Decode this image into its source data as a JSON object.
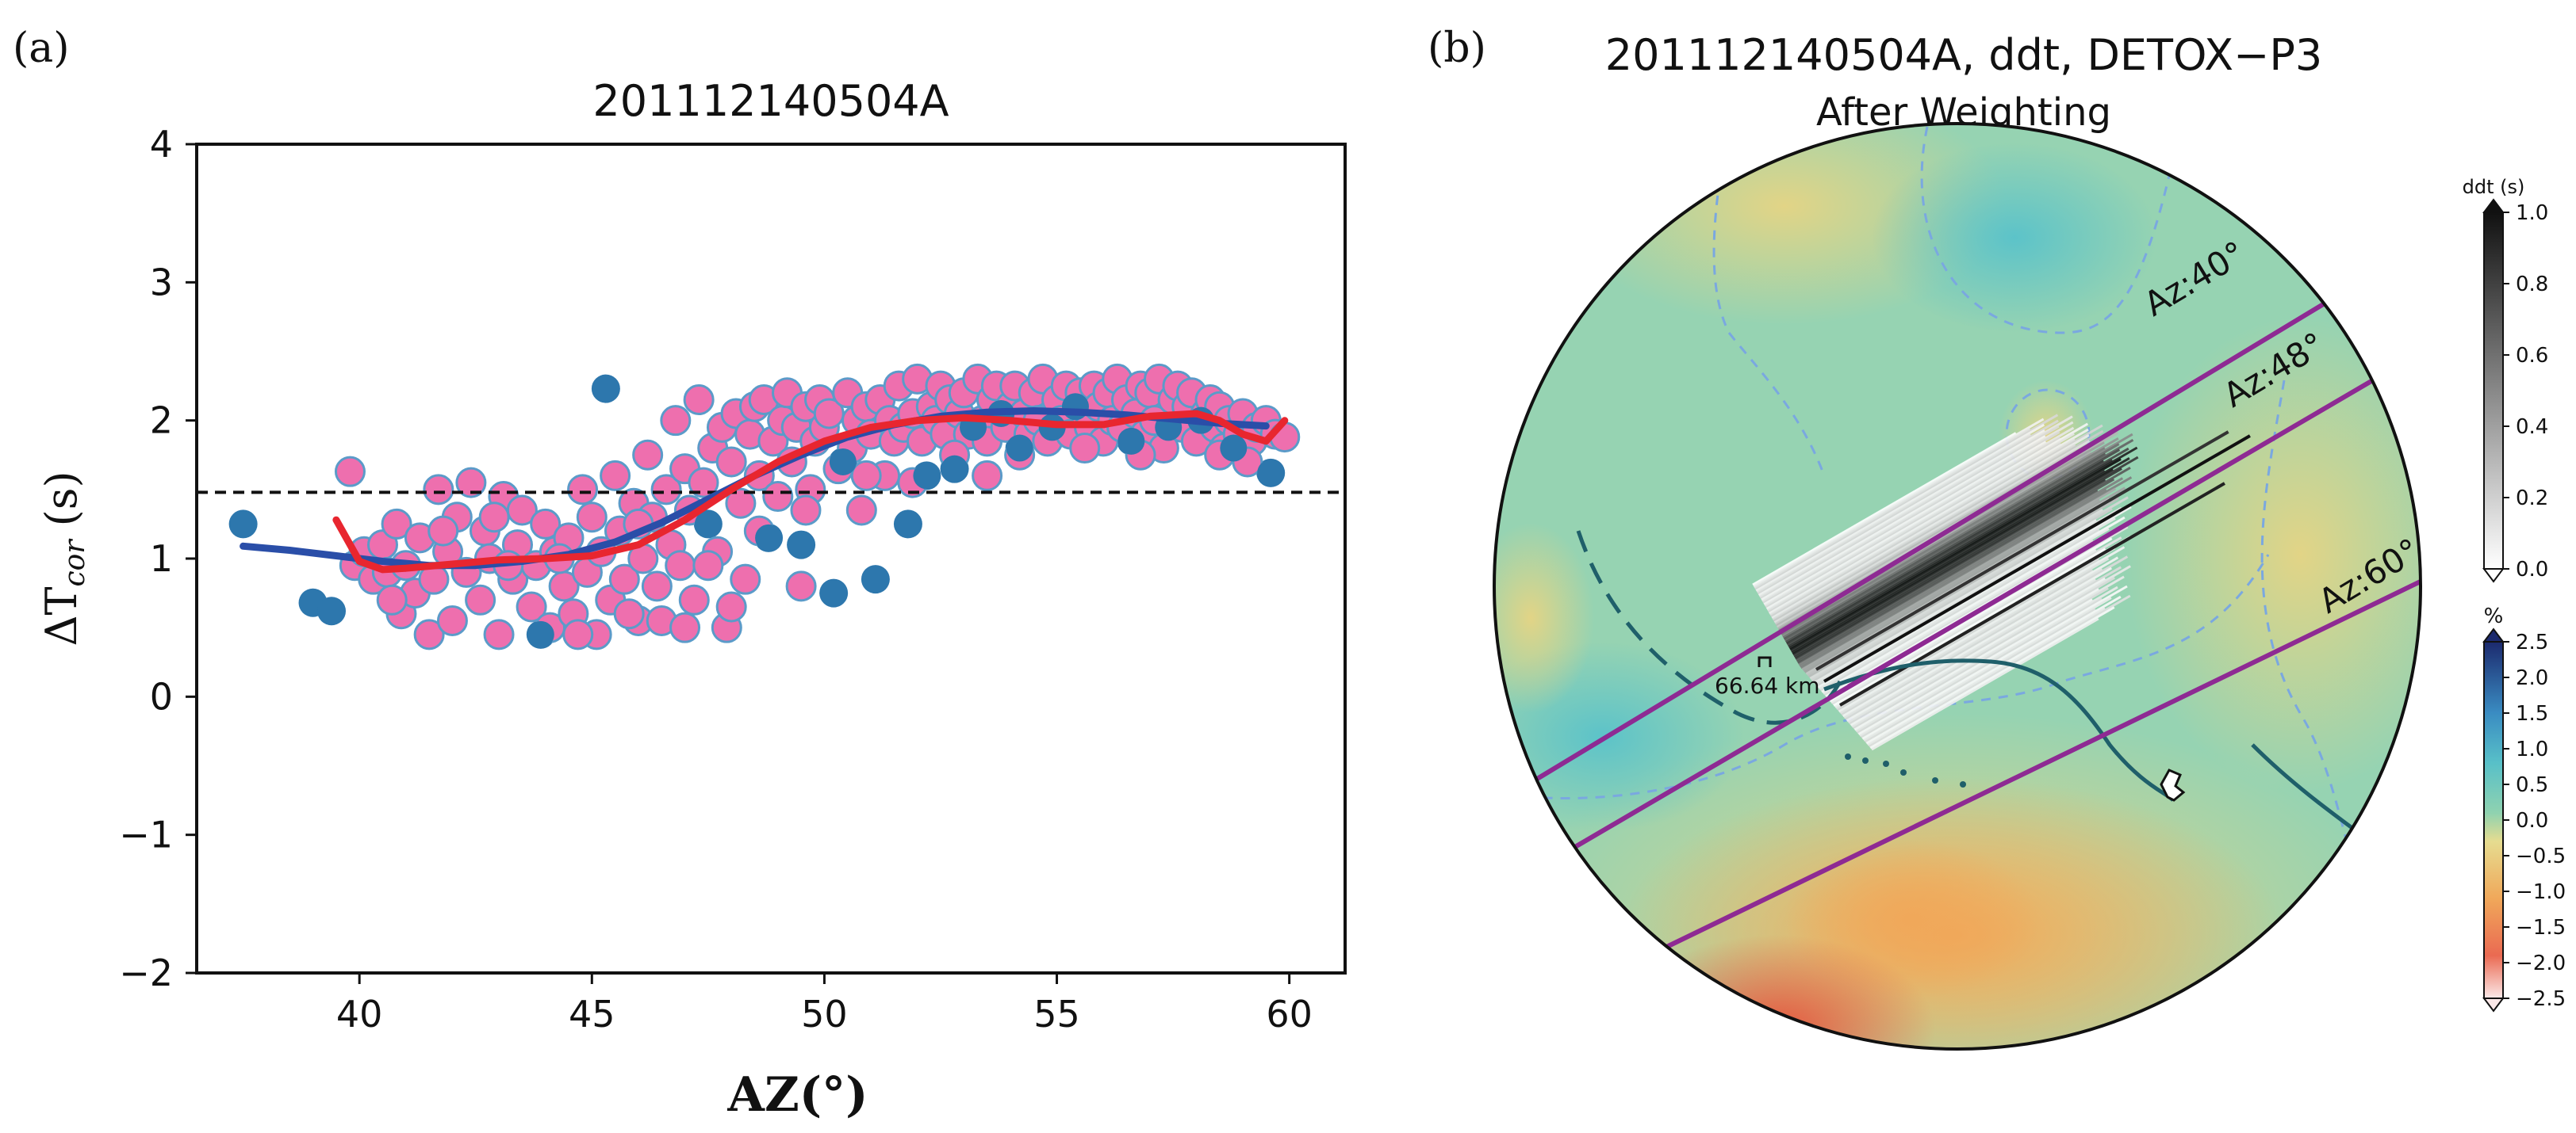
{
  "panel_a": {
    "label": "(a)",
    "title": "201112140504A",
    "ylabel_main": "ΔT",
    "ylabel_sub": "cor",
    "ylabel_unit": " (s)",
    "xlabel": "AZ(°)"
  },
  "panel_b": {
    "label": "(b)",
    "title": "201112140504A, ddt, DETOX−P3",
    "subtitle": "After Weighting",
    "azimuth_labels": [
      "Az:40°",
      "Az:48°",
      "Az:60°"
    ],
    "scale_label": "66.64 km",
    "colorbar_ddt": {
      "title": "ddt (s)",
      "ticks": [
        "1.0",
        "0.8",
        "0.6",
        "0.4",
        "0.2",
        "0.0"
      ]
    },
    "colorbar_pct": {
      "title": "%",
      "ticks": [
        "2.5",
        "2.0",
        "1.5",
        "1.0",
        "0.5",
        "0.0",
        "−0.5",
        "−1.0",
        "−1.5",
        "−2.0",
        "−2.5"
      ]
    },
    "colors": {
      "azimuth_line": "#8e2a93",
      "ray_dark": "#111111",
      "track": "#1f5f6a"
    }
  },
  "chart_data": [
    {
      "type": "scatter",
      "title": "201112140504A",
      "xlabel": "AZ(°)",
      "ylabel": "ΔTcor (s)",
      "xlim": [
        36.5,
        61.2
      ],
      "ylim": [
        -2,
        4
      ],
      "xticks": [
        40,
        45,
        50,
        55,
        60
      ],
      "yticks": [
        -2,
        -1,
        0,
        1,
        2,
        3,
        4
      ],
      "xtick_labels": [
        "40",
        "45",
        "50",
        "55",
        "60"
      ],
      "ytick_labels": [
        "−2",
        "−1",
        "0",
        "1",
        "2",
        "3",
        "4"
      ],
      "reference_line": 1.48,
      "colors": {
        "pink": "#ee6fae",
        "pink_edge": "#5b9bc9",
        "blue": "#2d77ad",
        "red": "#e8262f",
        "navy": "#2a4ea8"
      },
      "series": [
        {
          "name": "blue_points",
          "points": [
            [
              37.5,
              1.25
            ],
            [
              39.0,
              0.68
            ],
            [
              39.4,
              0.62
            ],
            [
              45.3,
              2.23
            ],
            [
              43.9,
              0.45
            ],
            [
              47.5,
              1.25
            ],
            [
              48.8,
              1.15
            ],
            [
              49.5,
              1.1
            ],
            [
              50.2,
              0.75
            ],
            [
              51.1,
              0.85
            ],
            [
              51.8,
              1.25
            ],
            [
              52.2,
              1.6
            ],
            [
              52.8,
              1.65
            ],
            [
              53.2,
              1.95
            ],
            [
              53.8,
              2.05
            ],
            [
              54.2,
              1.8
            ],
            [
              54.9,
              1.95
            ],
            [
              56.6,
              1.85
            ],
            [
              57.4,
              1.95
            ],
            [
              58.1,
              2.0
            ],
            [
              58.8,
              1.8
            ],
            [
              59.6,
              1.62
            ],
            [
              55.4,
              2.1
            ],
            [
              50.4,
              1.7
            ]
          ]
        },
        {
          "name": "pink_points",
          "points": [
            [
              39.8,
              1.63
            ],
            [
              39.9,
              0.95
            ],
            [
              40.1,
              1.05
            ],
            [
              40.3,
              0.85
            ],
            [
              40.5,
              1.1
            ],
            [
              40.6,
              0.9
            ],
            [
              40.8,
              1.25
            ],
            [
              40.9,
              0.6
            ],
            [
              41.0,
              0.95
            ],
            [
              41.2,
              0.75
            ],
            [
              41.3,
              1.15
            ],
            [
              41.5,
              0.45
            ],
            [
              41.6,
              0.85
            ],
            [
              41.7,
              1.5
            ],
            [
              41.9,
              1.05
            ],
            [
              42.0,
              0.55
            ],
            [
              42.1,
              1.3
            ],
            [
              42.3,
              0.9
            ],
            [
              42.4,
              1.55
            ],
            [
              42.6,
              0.7
            ],
            [
              42.7,
              1.2
            ],
            [
              42.8,
              1.0
            ],
            [
              43.0,
              0.45
            ],
            [
              43.1,
              1.45
            ],
            [
              43.3,
              0.85
            ],
            [
              43.4,
              1.1
            ],
            [
              43.5,
              1.35
            ],
            [
              43.7,
              0.65
            ],
            [
              43.8,
              0.95
            ],
            [
              44.0,
              1.25
            ],
            [
              44.1,
              0.5
            ],
            [
              44.2,
              1.05
            ],
            [
              44.4,
              0.8
            ],
            [
              44.5,
              1.15
            ],
            [
              44.6,
              0.6
            ],
            [
              44.8,
              1.5
            ],
            [
              44.9,
              0.9
            ],
            [
              45.0,
              1.3
            ],
            [
              45.1,
              0.45
            ],
            [
              45.2,
              1.05
            ],
            [
              45.4,
              0.7
            ],
            [
              45.5,
              1.6
            ],
            [
              45.6,
              1.2
            ],
            [
              45.7,
              0.85
            ],
            [
              45.9,
              1.4
            ],
            [
              46.0,
              0.55
            ],
            [
              46.1,
              1.0
            ],
            [
              46.2,
              1.75
            ],
            [
              46.3,
              1.3
            ],
            [
              46.4,
              0.8
            ],
            [
              46.6,
              1.5
            ],
            [
              46.7,
              1.1
            ],
            [
              46.8,
              2.0
            ],
            [
              46.9,
              0.95
            ],
            [
              47.0,
              1.65
            ],
            [
              47.1,
              1.35
            ],
            [
              47.2,
              0.7
            ],
            [
              47.3,
              2.15
            ],
            [
              47.4,
              1.55
            ],
            [
              47.6,
              1.8
            ],
            [
              47.7,
              1.05
            ],
            [
              47.8,
              1.95
            ],
            [
              47.9,
              0.5
            ],
            [
              48.0,
              1.7
            ],
            [
              48.1,
              2.05
            ],
            [
              48.2,
              1.4
            ],
            [
              48.3,
              0.85
            ],
            [
              48.4,
              1.9
            ],
            [
              48.5,
              2.1
            ],
            [
              48.6,
              1.6
            ],
            [
              48.7,
              2.15
            ],
            [
              48.9,
              1.85
            ],
            [
              49.0,
              1.45
            ],
            [
              49.1,
              2.0
            ],
            [
              49.2,
              2.2
            ],
            [
              49.3,
              1.7
            ],
            [
              49.4,
              1.95
            ],
            [
              49.6,
              2.1
            ],
            [
              49.7,
              1.5
            ],
            [
              49.8,
              1.85
            ],
            [
              49.9,
              2.15
            ],
            [
              50.0,
              1.95
            ],
            [
              50.1,
              2.05
            ],
            [
              50.3,
              1.65
            ],
            [
              50.5,
              2.2
            ],
            [
              50.6,
              1.8
            ],
            [
              50.7,
              2.0
            ],
            [
              50.8,
              1.35
            ],
            [
              50.9,
              2.1
            ],
            [
              51.0,
              1.9
            ],
            [
              51.2,
              2.15
            ],
            [
              51.3,
              1.6
            ],
            [
              51.4,
              2.0
            ],
            [
              51.5,
              1.85
            ],
            [
              51.6,
              2.25
            ],
            [
              51.7,
              1.95
            ],
            [
              51.9,
              2.05
            ],
            [
              52.0,
              2.3
            ],
            [
              52.1,
              1.85
            ],
            [
              52.3,
              2.1
            ],
            [
              52.4,
              2.0
            ],
            [
              52.5,
              2.25
            ],
            [
              52.6,
              1.9
            ],
            [
              52.7,
              2.15
            ],
            [
              52.9,
              2.05
            ],
            [
              53.0,
              2.2
            ],
            [
              53.1,
              1.9
            ],
            [
              53.3,
              2.3
            ],
            [
              53.4,
              2.0
            ],
            [
              53.5,
              1.85
            ],
            [
              53.6,
              2.15
            ],
            [
              53.7,
              2.25
            ],
            [
              53.9,
              1.95
            ],
            [
              54.0,
              2.1
            ],
            [
              54.1,
              2.25
            ],
            [
              54.3,
              2.05
            ],
            [
              54.4,
              1.9
            ],
            [
              54.5,
              2.2
            ],
            [
              54.6,
              2.0
            ],
            [
              54.7,
              2.3
            ],
            [
              54.8,
              1.85
            ],
            [
              55.0,
              2.15
            ],
            [
              55.1,
              2.0
            ],
            [
              55.2,
              2.25
            ],
            [
              55.3,
              1.9
            ],
            [
              55.5,
              2.2
            ],
            [
              55.6,
              2.05
            ],
            [
              55.7,
              1.95
            ],
            [
              55.8,
              2.25
            ],
            [
              55.9,
              2.1
            ],
            [
              56.0,
              1.85
            ],
            [
              56.1,
              2.2
            ],
            [
              56.2,
              2.0
            ],
            [
              56.3,
              2.3
            ],
            [
              56.4,
              1.95
            ],
            [
              56.5,
              2.15
            ],
            [
              56.7,
              2.05
            ],
            [
              56.8,
              2.25
            ],
            [
              56.9,
              1.9
            ],
            [
              57.0,
              2.2
            ],
            [
              57.1,
              2.0
            ],
            [
              57.2,
              2.3
            ],
            [
              57.3,
              1.8
            ],
            [
              57.5,
              2.15
            ],
            [
              57.6,
              2.25
            ],
            [
              57.7,
              1.95
            ],
            [
              57.8,
              2.1
            ],
            [
              57.9,
              2.2
            ],
            [
              58.0,
              1.85
            ],
            [
              58.2,
              2.05
            ],
            [
              58.3,
              2.15
            ],
            [
              58.4,
              1.95
            ],
            [
              58.5,
              2.1
            ],
            [
              58.6,
              1.8
            ],
            [
              58.7,
              2.0
            ],
            [
              58.9,
              1.9
            ],
            [
              59.0,
              2.05
            ],
            [
              59.2,
              1.85
            ],
            [
              59.3,
              1.95
            ],
            [
              59.5,
              2.0
            ],
            [
              59.7,
              1.9
            ],
            [
              59.9,
              1.88
            ],
            [
              49.5,
              0.8
            ],
            [
              48.0,
              0.65
            ],
            [
              46.5,
              0.55
            ],
            [
              44.7,
              0.45
            ],
            [
              47.0,
              0.5
            ],
            [
              45.8,
              0.6
            ],
            [
              43.2,
              0.95
            ],
            [
              41.8,
              1.2
            ],
            [
              40.7,
              0.7
            ],
            [
              42.9,
              1.3
            ],
            [
              44.3,
              1.0
            ],
            [
              46.0,
              1.25
            ],
            [
              47.5,
              0.95
            ],
            [
              48.6,
              1.2
            ],
            [
              49.6,
              1.35
            ],
            [
              50.9,
              1.6
            ],
            [
              51.9,
              1.55
            ],
            [
              52.8,
              1.75
            ],
            [
              54.2,
              1.75
            ],
            [
              53.5,
              1.6
            ],
            [
              55.6,
              1.8
            ],
            [
              56.8,
              1.75
            ],
            [
              58.5,
              1.75
            ],
            [
              59.1,
              1.7
            ]
          ]
        },
        {
          "name": "red_fit",
          "points": [
            [
              39.5,
              1.28
            ],
            [
              40.0,
              0.98
            ],
            [
              40.5,
              0.92
            ],
            [
              41.0,
              0.93
            ],
            [
              42.0,
              0.96
            ],
            [
              43.0,
              0.99
            ],
            [
              44.0,
              1.0
            ],
            [
              45.0,
              1.02
            ],
            [
              46.0,
              1.1
            ],
            [
              47.0,
              1.28
            ],
            [
              48.0,
              1.5
            ],
            [
              49.0,
              1.7
            ],
            [
              50.0,
              1.85
            ],
            [
              51.0,
              1.95
            ],
            [
              52.0,
              2.0
            ],
            [
              53.0,
              2.02
            ],
            [
              54.0,
              2.0
            ],
            [
              55.0,
              1.97
            ],
            [
              56.0,
              1.97
            ],
            [
              57.0,
              2.03
            ],
            [
              58.0,
              2.05
            ],
            [
              58.5,
              2.0
            ],
            [
              59.0,
              1.9
            ],
            [
              59.5,
              1.85
            ],
            [
              59.9,
              2.0
            ]
          ]
        },
        {
          "name": "blue_fit",
          "points": [
            [
              37.5,
              1.09
            ],
            [
              38.5,
              1.06
            ],
            [
              39.5,
              1.02
            ],
            [
              40.5,
              0.98
            ],
            [
              41.5,
              0.95
            ],
            [
              42.5,
              0.95
            ],
            [
              43.5,
              0.98
            ],
            [
              44.5,
              1.03
            ],
            [
              45.5,
              1.12
            ],
            [
              46.5,
              1.26
            ],
            [
              47.5,
              1.43
            ],
            [
              48.5,
              1.6
            ],
            [
              49.5,
              1.75
            ],
            [
              50.5,
              1.88
            ],
            [
              51.5,
              1.97
            ],
            [
              52.5,
              2.03
            ],
            [
              53.5,
              2.06
            ],
            [
              54.5,
              2.07
            ],
            [
              55.5,
              2.06
            ],
            [
              56.5,
              2.04
            ],
            [
              57.5,
              2.01
            ],
            [
              58.5,
              1.98
            ],
            [
              59.5,
              1.96
            ]
          ]
        }
      ]
    }
  ]
}
